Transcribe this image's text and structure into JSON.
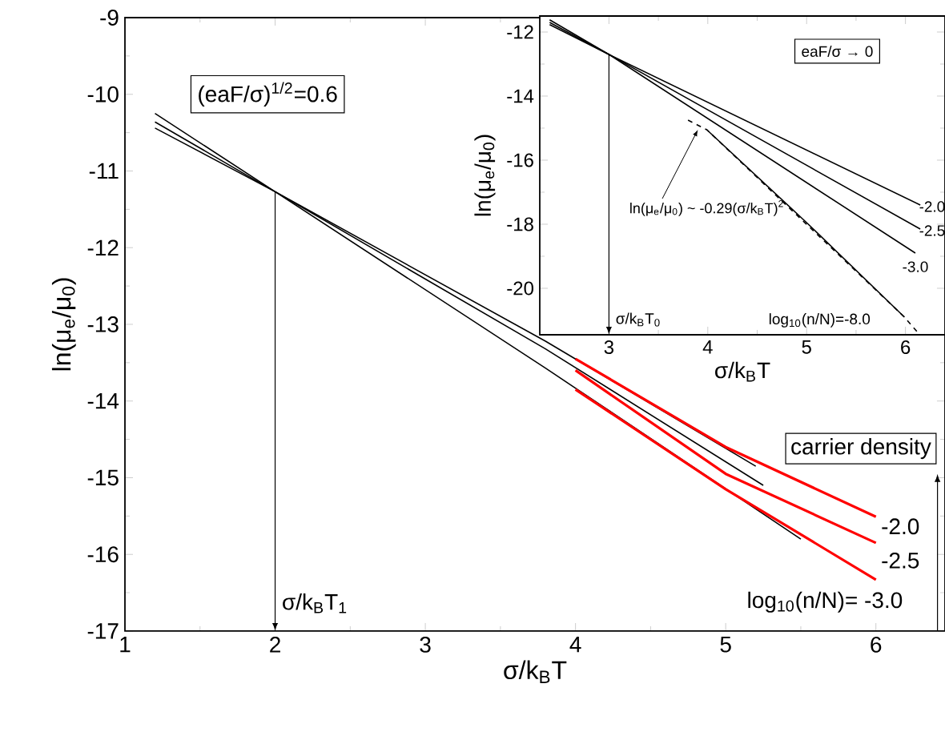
{
  "chart_data": [
    {
      "type": "line",
      "xlabel": "σ/k$_{B}$T",
      "ylabel": "ln(μ$_{e}$/μ$_{0}$)",
      "xlim": [
        1,
        6.46
      ],
      "ylim": [
        -17,
        -9
      ],
      "xticks": [
        1,
        2,
        3,
        4,
        5,
        6
      ],
      "yticks": [
        -17,
        -16,
        -15,
        -14,
        -13,
        -12,
        -11,
        -10,
        -9
      ],
      "series": [
        {
          "color": "#000000",
          "x": [
            1.2,
            2,
            3.8,
            5.2
          ],
          "values": [
            -10.25,
            -11.27,
            -13.22,
            -14.85
          ]
        },
        {
          "color": "#000000",
          "x": [
            1.2,
            2,
            3.8,
            5.25
          ],
          "values": [
            -10.36,
            -11.27,
            -13.32,
            -15.1
          ]
        },
        {
          "color": "#000000",
          "x": [
            1.2,
            2,
            3.8,
            5.5
          ],
          "values": [
            -10.44,
            -11.27,
            -13.57,
            -15.8
          ]
        },
        {
          "color": "#ff0000",
          "x": [
            4,
            5,
            6
          ],
          "values": [
            -13.45,
            -14.6,
            -15.51
          ]
        },
        {
          "color": "#ff0000",
          "x": [
            4,
            5,
            6
          ],
          "values": [
            -13.6,
            -14.95,
            -15.85
          ]
        },
        {
          "color": "#ff0000",
          "x": [
            4,
            5,
            6
          ],
          "values": [
            -13.85,
            -15.15,
            -16.33
          ]
        }
      ],
      "annotations": [
        "(eaF/σ)$^{1/2}$=0.6",
        "carrier density",
        {
          "text": "-2.0",
          "x": 6,
          "y": -15.51
        },
        {
          "text": "-2.5",
          "x": 6,
          "y": -15.85
        },
        {
          "text": "log$_{10}$(n/N)= -3.0",
          "x": 6,
          "y": -16.33
        }
      ],
      "ref_lines": [
        {
          "axis": "x",
          "value": 2,
          "label": "σ/k$_{B}$T$_{1}$"
        }
      ]
    },
    {
      "type": "line",
      "xlabel": "σ/k$_{B}$T",
      "ylabel": "ln(μ$_{e}$/μ$_{0}$)",
      "xlim": [
        2.3,
        6.4
      ],
      "ylim": [
        -21.45,
        -11.5
      ],
      "xticks": [
        3,
        4,
        5,
        6
      ],
      "yticks": [
        -20,
        -18,
        -16,
        -14,
        -12
      ],
      "series": [
        {
          "color": "#000000",
          "x": [
            2.4,
            3,
            6.15
          ],
          "values": [
            -11.62,
            -12.7,
            -17.4
          ]
        },
        {
          "color": "#000000",
          "x": [
            2.4,
            3,
            6.15
          ],
          "values": [
            -11.7,
            -12.7,
            -18.15
          ]
        },
        {
          "color": "#000000",
          "x": [
            2.4,
            3,
            6.1
          ],
          "values": [
            -11.77,
            -12.7,
            -18.9
          ]
        },
        {
          "color": "#000000",
          "x": [
            3.99,
            5,
            5.99
          ],
          "values": [
            -15.05,
            -17.95,
            -20.9
          ]
        },
        {
          "color": "#000000",
          "line_style": "dashed",
          "x": [
            3.8,
            3.99,
            5.99,
            6.13
          ],
          "values": [
            -14.75,
            -15.05,
            -20.9,
            -21.4
          ]
        }
      ],
      "annotations": [
        "eaF/σ → 0",
        {
          "text": "ln(μ$_{e}$/μ$_{0}$) ~ -0.29(σ/k$_{B}$T)$^{2}$",
          "x": 3.9,
          "y": -15.05
        },
        {
          "text": "-2.0",
          "x": 6.15,
          "y": -17.4
        },
        {
          "text": "-2.5",
          "x": 6.15,
          "y": -18.15
        },
        {
          "text": "-3.0",
          "x": 6.1,
          "y": -18.9
        },
        "log$_{10}$(n/N)=-8.0"
      ],
      "ref_lines": [
        {
          "axis": "x",
          "value": 3,
          "label": "σ/k$_{B}$T$_{0}$"
        }
      ]
    }
  ]
}
